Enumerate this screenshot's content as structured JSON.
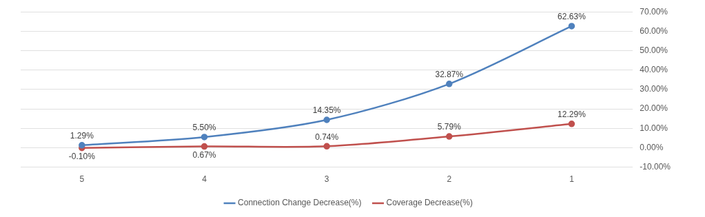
{
  "chart_data": {
    "type": "line",
    "categories": [
      "5",
      "4",
      "3",
      "2",
      "1"
    ],
    "series": [
      {
        "name": "Connection Change Decrease(%)",
        "color": "#4f81bd",
        "marker": "circle",
        "values": [
          1.29,
          5.5,
          14.35,
          32.87,
          62.63
        ],
        "value_labels": [
          "1.29%",
          "5.50%",
          "14.35%",
          "32.87%",
          "62.63%"
        ]
      },
      {
        "name": "Coverage Decrease(%)",
        "color": "#c0504d",
        "marker": "circle",
        "values": [
          -0.1,
          0.67,
          0.74,
          5.79,
          12.29
        ],
        "value_labels": [
          "-0.10%",
          "0.67%",
          "0.74%",
          "5.79%",
          "12.29%"
        ]
      }
    ],
    "ylim": [
      -10,
      70
    ],
    "yticks": [
      {
        "value": -10,
        "label": "-10.00%"
      },
      {
        "value": 0,
        "label": "0.00%"
      },
      {
        "value": 10,
        "label": "10.00%"
      },
      {
        "value": 20,
        "label": "20.00%"
      },
      {
        "value": 30,
        "label": "30.00%"
      },
      {
        "value": 40,
        "label": "40.00%"
      },
      {
        "value": 50,
        "label": "50.00%"
      },
      {
        "value": 60,
        "label": "60.00%"
      },
      {
        "value": 70,
        "label": "70.00%"
      }
    ],
    "grid": true,
    "legend": "bottom",
    "data_labels": true
  }
}
